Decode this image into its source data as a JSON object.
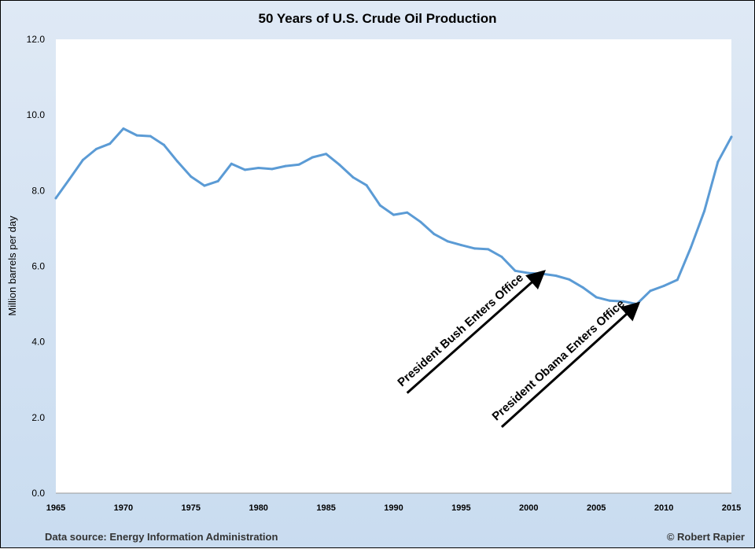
{
  "chart_data": {
    "type": "line",
    "title": "50 Years of U.S. Crude Oil Production",
    "xlabel": "",
    "ylabel": "Million barrels per day",
    "xlim": [
      1965,
      2015
    ],
    "ylim": [
      0,
      12
    ],
    "x_ticks": [
      "1965",
      "1970",
      "1975",
      "1980",
      "1985",
      "1990",
      "1995",
      "2000",
      "2005",
      "2010",
      "2015"
    ],
    "y_ticks": [
      "0.0",
      "2.0",
      "4.0",
      "6.0",
      "8.0",
      "10.0",
      "12.0"
    ],
    "grid": false,
    "series": [
      {
        "color": "#5b9bd5",
        "x": [
          1965,
          1966,
          1967,
          1968,
          1969,
          1970,
          1971,
          1972,
          1973,
          1974,
          1975,
          1976,
          1977,
          1978,
          1979,
          1980,
          1981,
          1982,
          1983,
          1984,
          1985,
          1986,
          1987,
          1988,
          1989,
          1990,
          1991,
          1992,
          1993,
          1994,
          1995,
          1996,
          1997,
          1998,
          1999,
          2000,
          2001,
          2002,
          2003,
          2004,
          2005,
          2006,
          2007,
          2008,
          2009,
          2010,
          2011,
          2012,
          2013,
          2014,
          2015
        ],
        "y": [
          7.8,
          8.3,
          8.81,
          9.1,
          9.24,
          9.64,
          9.46,
          9.44,
          9.21,
          8.77,
          8.37,
          8.13,
          8.25,
          8.71,
          8.55,
          8.6,
          8.57,
          8.65,
          8.69,
          8.88,
          8.97,
          8.68,
          8.35,
          8.14,
          7.61,
          7.36,
          7.42,
          7.17,
          6.85,
          6.66,
          6.56,
          6.47,
          6.45,
          6.25,
          5.88,
          5.82,
          5.8,
          5.75,
          5.65,
          5.44,
          5.18,
          5.09,
          5.07,
          5.0,
          5.35,
          5.48,
          5.64,
          6.5,
          7.46,
          8.76,
          9.42
        ]
      }
    ],
    "annotations": [
      {
        "text": "President Bush Enters Office",
        "arrow_tail": [
          1991,
          2.65
        ],
        "arrow_head": [
          2001,
          5.82
        ]
      },
      {
        "text": "President Obama Enters Office",
        "arrow_tail": [
          1998,
          1.75
        ],
        "arrow_head": [
          2008,
          4.98
        ]
      }
    ]
  },
  "footer": {
    "source": "Data source: Energy Information Administration",
    "credit": "© Robert Rapier"
  }
}
